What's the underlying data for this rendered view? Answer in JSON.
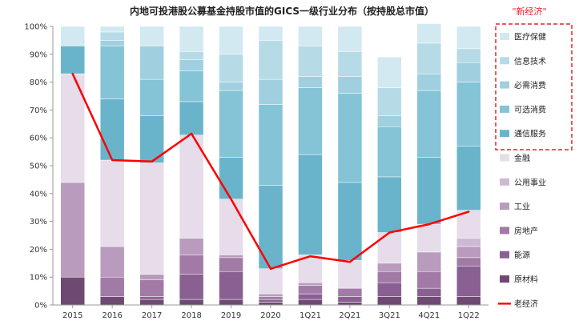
{
  "chart_data": {
    "type": "bar",
    "stacked": true,
    "title": "内地可投港股公募基金持股市值的GICS一级行业分布（按持股总市值）",
    "annotation": "\"新经济\"",
    "categories": [
      "2015",
      "2016",
      "2017",
      "2018",
      "2019",
      "2020",
      "1Q21",
      "2Q21",
      "3Q21",
      "4Q21",
      "1Q22"
    ],
    "ylim": [
      0,
      100
    ],
    "yticks": [
      "0%",
      "10%",
      "20%",
      "30%",
      "40%",
      "50%",
      "60%",
      "70%",
      "80%",
      "90%",
      "100%"
    ],
    "series": [
      {
        "name": "原材料",
        "color": "#6e4a72",
        "values": [
          10,
          3,
          2,
          2,
          2,
          1,
          2,
          1,
          3,
          3,
          3
        ]
      },
      {
        "name": "能源",
        "color": "#8a6092",
        "values": [
          0,
          0,
          1,
          9,
          10,
          1,
          2,
          2,
          5,
          3,
          11
        ]
      },
      {
        "name": "房地产",
        "color": "#a17aa6",
        "values": [
          0,
          7,
          6,
          7,
          5,
          1,
          3,
          3,
          4,
          6,
          3
        ]
      },
      {
        "name": "工业",
        "color": "#b99bbd",
        "values": [
          34,
          11,
          2,
          6,
          1,
          1,
          1,
          0,
          3,
          7,
          4
        ]
      },
      {
        "name": "公用事业",
        "color": "#cdb9d4",
        "values": [
          0,
          0,
          0,
          0,
          0,
          0,
          0,
          0,
          0,
          0,
          3
        ]
      },
      {
        "name": "金融",
        "color": "#e6dcea",
        "values": [
          39,
          31,
          40,
          37,
          20,
          9,
          10,
          10,
          11,
          10,
          10
        ]
      },
      {
        "name": "通信服务",
        "color": "#6ab4cb",
        "values": [
          10,
          22,
          17,
          12,
          15,
          30,
          36,
          28,
          20,
          24,
          23
        ]
      },
      {
        "name": "可选消费",
        "color": "#85c3d6",
        "values": [
          0,
          19,
          13,
          11,
          24,
          29,
          24,
          32,
          18,
          24,
          23
        ]
      },
      {
        "name": "必需消费",
        "color": "#a0d0df",
        "values": [
          0,
          2,
          12,
          4,
          3,
          9,
          4,
          6,
          4,
          6,
          7
        ]
      },
      {
        "name": "信息技术",
        "color": "#b6dbe7",
        "values": [
          0,
          3,
          0,
          3,
          10,
          14,
          11,
          9,
          10,
          11,
          5
        ]
      },
      {
        "name": "医疗保健",
        "color": "#d2e9f1",
        "values": [
          7,
          2,
          7,
          9,
          10,
          5,
          7,
          9,
          11,
          7,
          8
        ]
      }
    ],
    "line": {
      "name": "老经济",
      "color": "#ff0000",
      "values": [
        83,
        52,
        51.5,
        61.5,
        38,
        13,
        17.5,
        15.5,
        26,
        29,
        33.5
      ]
    }
  }
}
